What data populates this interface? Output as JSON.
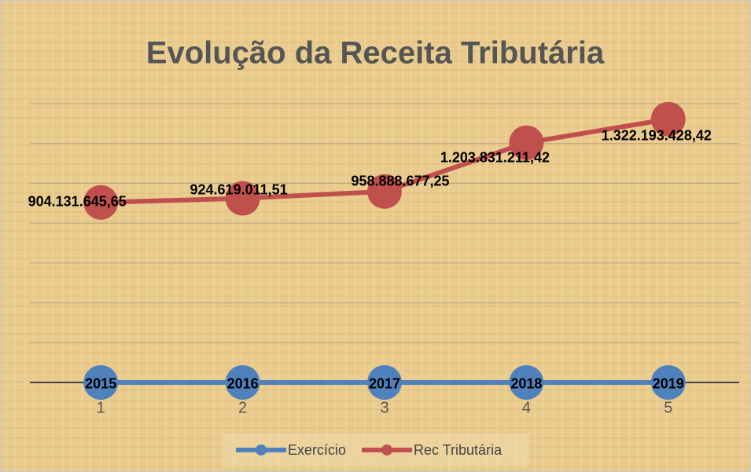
{
  "chart_data": {
    "type": "line",
    "title": "Evolução da Receita Tributária",
    "categories": [
      "1",
      "2",
      "3",
      "4",
      "5"
    ],
    "series": [
      {
        "name": "Exercício",
        "color": "#4f81bd",
        "values": [
          2015,
          2016,
          2017,
          2018,
          2019
        ]
      },
      {
        "name": "Rec Tributária",
        "color": "#c0504d",
        "values": [
          904131645.65,
          924619011.51,
          958888677.25,
          1203831211.42,
          1322193428.42
        ],
        "value_labels": [
          "904.131.645,65",
          "924.619.011,51",
          "958.888.677,25",
          "1.203.831.211,42",
          "1.322.193.428,42"
        ]
      }
    ],
    "ylim": [
      0,
      1400000000
    ],
    "yticks": [
      0,
      200000000,
      400000000,
      600000000,
      800000000,
      1000000000,
      1200000000,
      1400000000
    ],
    "grid": true,
    "legend": "bottom"
  }
}
